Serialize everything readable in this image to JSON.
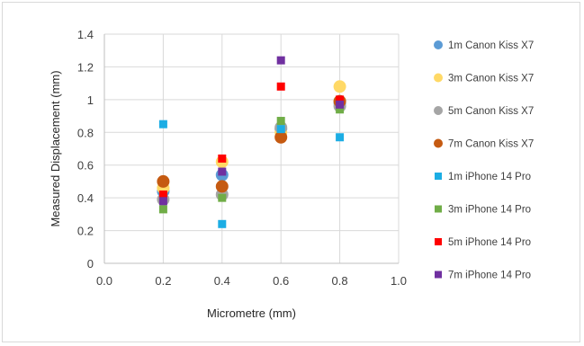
{
  "chart_data": {
    "type": "scatter",
    "title": "",
    "xlabel": "Micrometre (mm)",
    "ylabel": "Measured Displacement (mm)",
    "xlim": [
      0.0,
      1.0
    ],
    "ylim": [
      0,
      1.4
    ],
    "x_ticks": [
      "0.0",
      "0.2",
      "0.4",
      "0.6",
      "0.8",
      "1.0"
    ],
    "y_ticks": [
      "0",
      "0.2",
      "0.4",
      "0.6",
      "0.8",
      "1",
      "1.2",
      "1.4"
    ],
    "grid": "vertical and horizontal major gridlines",
    "legend_position": "right",
    "series": [
      {
        "name": "1m Canon Kiss X7",
        "marker": "circle",
        "color": "#5B9BD5",
        "points": [
          [
            0.2,
            0.44
          ],
          [
            0.4,
            0.54
          ],
          [
            0.6,
            0.82
          ],
          [
            0.8,
            0.98
          ]
        ]
      },
      {
        "name": "3m Canon Kiss X7",
        "marker": "circle",
        "color": "#FFD966",
        "points": [
          [
            0.2,
            0.46
          ],
          [
            0.4,
            0.62
          ],
          [
            0.6,
            0.8
          ],
          [
            0.8,
            1.08
          ]
        ]
      },
      {
        "name": "5m Canon Kiss X7",
        "marker": "circle",
        "color": "#A5A5A5",
        "points": [
          [
            0.2,
            0.39
          ],
          [
            0.4,
            0.42
          ],
          [
            0.6,
            0.83
          ],
          [
            0.8,
            0.96
          ]
        ]
      },
      {
        "name": "7m Canon Kiss X7",
        "marker": "circle",
        "color": "#C55A11",
        "points": [
          [
            0.2,
            0.5
          ],
          [
            0.4,
            0.47
          ],
          [
            0.6,
            0.77
          ],
          [
            0.8,
            0.99
          ]
        ]
      },
      {
        "name": "1m iPhone 14 Pro",
        "marker": "square",
        "color": "#1CADE4",
        "points": [
          [
            0.2,
            0.85
          ],
          [
            0.4,
            0.24
          ],
          [
            0.6,
            0.82
          ],
          [
            0.8,
            0.77
          ]
        ]
      },
      {
        "name": "3m iPhone 14 Pro",
        "marker": "square",
        "color": "#70AD47",
        "points": [
          [
            0.2,
            0.33
          ],
          [
            0.4,
            0.4
          ],
          [
            0.6,
            0.87
          ],
          [
            0.8,
            0.94
          ]
        ]
      },
      {
        "name": "5m iPhone 14 Pro",
        "marker": "square",
        "color": "#FF0000",
        "points": [
          [
            0.2,
            0.42
          ],
          [
            0.4,
            0.64
          ],
          [
            0.6,
            1.08
          ],
          [
            0.8,
            1.0
          ]
        ]
      },
      {
        "name": "7m iPhone 14 Pro",
        "marker": "square",
        "color": "#7030A0",
        "points": [
          [
            0.2,
            0.38
          ],
          [
            0.4,
            0.56
          ],
          [
            0.6,
            1.24
          ],
          [
            0.8,
            0.97
          ]
        ]
      }
    ]
  }
}
